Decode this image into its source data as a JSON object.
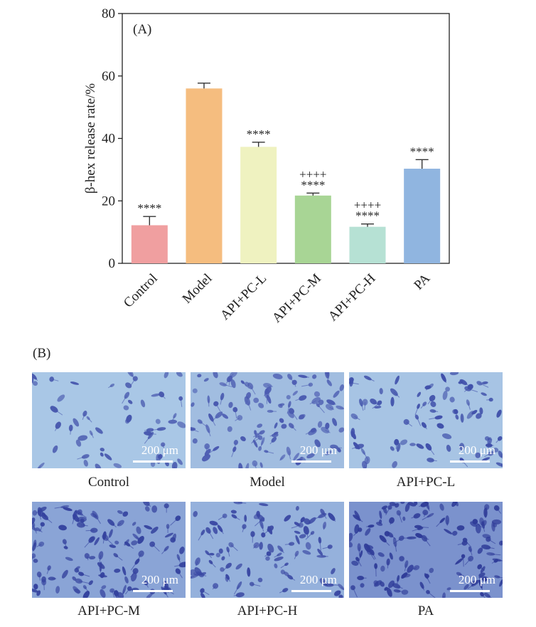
{
  "chart_data": {
    "panel_label": "(A)",
    "type": "bar",
    "ylabel": "β-hex release rate/%",
    "ylim": [
      0,
      80
    ],
    "yticks": [
      0,
      20,
      40,
      60,
      80
    ],
    "categories": [
      "Control",
      "Model",
      "API+PC-L",
      "API+PC-M",
      "API+PC-H",
      "PA"
    ],
    "values": [
      12.2,
      56.0,
      37.3,
      21.7,
      11.7,
      30.3
    ],
    "errors": [
      2.8,
      1.7,
      1.5,
      0.8,
      0.9,
      2.9
    ],
    "colors": [
      "#f09fa0",
      "#f5bd7f",
      "#eff2c0",
      "#a8d595",
      "#b6e1d4",
      "#90b5e0"
    ],
    "annotations": [
      {
        "category": "Control",
        "lines": [
          "****"
        ]
      },
      {
        "category": "API+PC-L",
        "lines": [
          "****"
        ]
      },
      {
        "category": "API+PC-M",
        "lines": [
          "++++",
          "****"
        ]
      },
      {
        "category": "API+PC-H",
        "lines": [
          "++++",
          "****"
        ]
      },
      {
        "category": "PA",
        "lines": [
          "****"
        ]
      }
    ]
  },
  "micrographs": {
    "panel_label": "(B)",
    "scale_bar": "200 μm",
    "images": [
      {
        "caption": "Control",
        "bg": "#a9c7e6",
        "cell": "#4656ad",
        "density": 55
      },
      {
        "caption": "Model",
        "bg": "#a1bde0",
        "cell": "#4a5ab0",
        "density": 110
      },
      {
        "caption": "API+PC-L",
        "bg": "#a7c4e4",
        "cell": "#4050aa",
        "density": 80
      },
      {
        "caption": "API+PC-M",
        "bg": "#8aa4d6",
        "cell": "#34429e",
        "density": 120
      },
      {
        "caption": "API+PC-H",
        "bg": "#95b1dc",
        "cell": "#3a48a3",
        "density": 95
      },
      {
        "caption": "PA",
        "bg": "#7b92cd",
        "cell": "#2f3c98",
        "density": 125
      }
    ]
  }
}
